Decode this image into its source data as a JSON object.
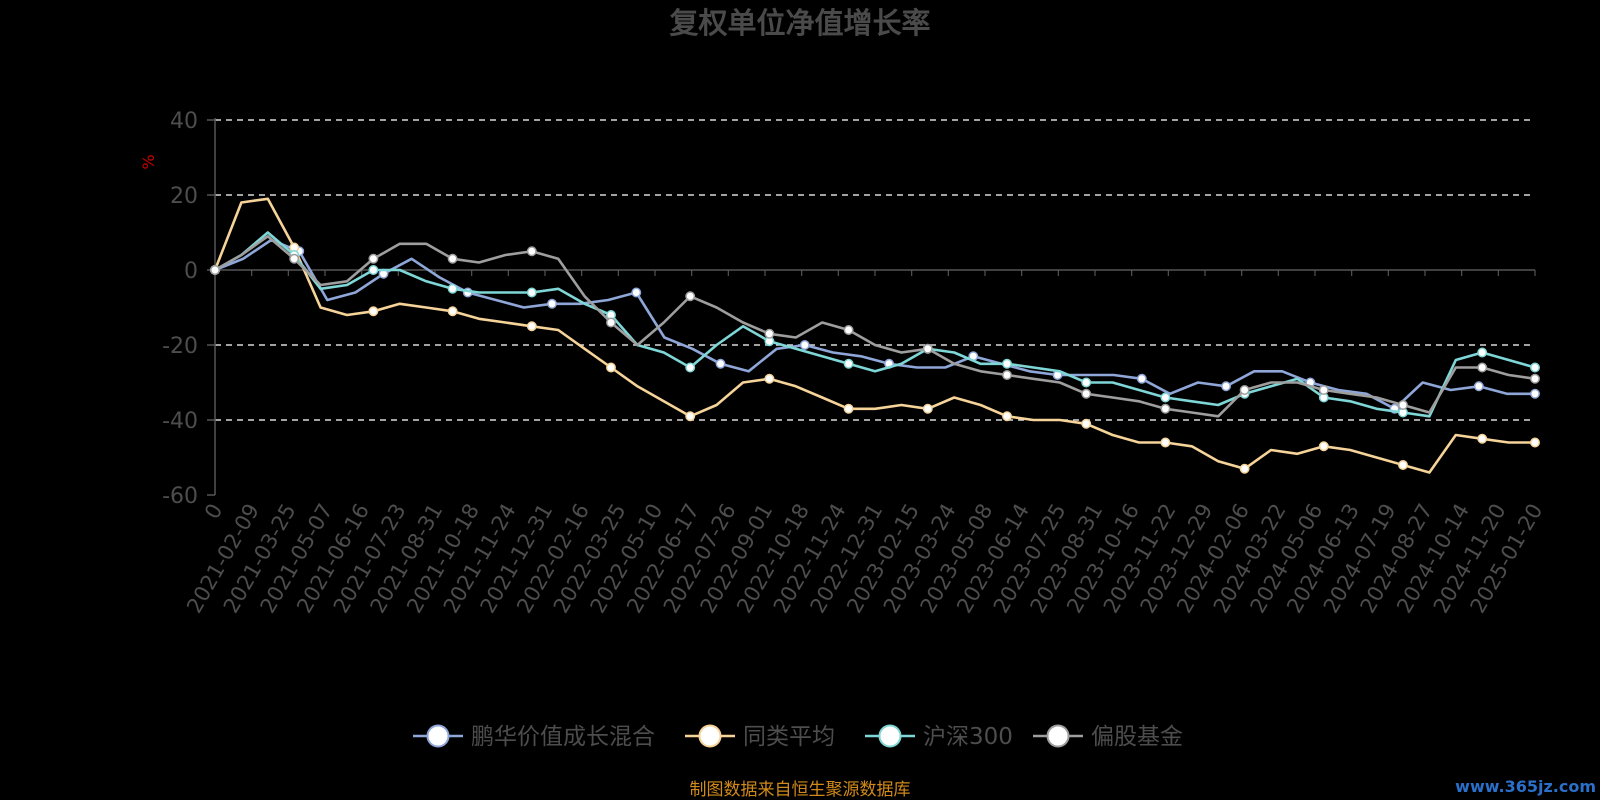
{
  "chart_data": {
    "type": "line",
    "title": "复权单位净值增长率",
    "ylabel": "%",
    "xlabel": "",
    "ylim": [
      -60,
      40
    ],
    "yticks": [
      40,
      20,
      0,
      -20,
      -40,
      -60
    ],
    "grid": true,
    "legend_position": "bottom",
    "x_tick_labels": [
      "0",
      "2021-02-09",
      "2021-03-25",
      "2021-05-07",
      "2021-06-16",
      "2021-07-23",
      "2021-08-31",
      "2021-10-18",
      "2021-11-24",
      "2021-12-31",
      "2022-02-16",
      "2022-03-25",
      "2022-05-10",
      "2022-06-17",
      "2022-07-26",
      "2022-09-01",
      "2022-10-18",
      "2022-11-24",
      "2022-12-31",
      "2023-02-15",
      "2023-03-24",
      "2023-05-08",
      "2023-06-14",
      "2023-07-25",
      "2023-08-31",
      "2023-10-16",
      "2023-11-22",
      "2023-12-29",
      "2024-02-06",
      "2024-03-22",
      "2024-05-06",
      "2024-06-13",
      "2024-07-19",
      "2024-08-27",
      "2024-10-14",
      "2024-11-20",
      "2025-01-20"
    ],
    "series": [
      {
        "name": "鹏华价值成长混合",
        "color": "#8ea6d8",
        "values": [
          0,
          3,
          8,
          5,
          -8,
          -6,
          -1,
          3,
          -2,
          -6,
          -8,
          -10,
          -9,
          -9,
          -8,
          -6,
          -18,
          -21,
          -25,
          -27,
          -21,
          -20,
          -22,
          -23,
          -25,
          -26,
          -26,
          -23,
          -25,
          -27,
          -28,
          -28,
          -28,
          -29,
          -33,
          -30,
          -31,
          -27,
          -27,
          -30,
          -32,
          -33,
          -37,
          -30,
          -32,
          -31,
          -33,
          -33
        ]
      },
      {
        "name": "同类平均",
        "color": "#f5d399",
        "values": [
          0,
          18,
          19,
          6,
          -10,
          -12,
          -11,
          -9,
          -10,
          -11,
          -13,
          -14,
          -15,
          -16,
          -21,
          -26,
          -31,
          -35,
          -39,
          -36,
          -30,
          -29,
          -31,
          -34,
          -37,
          -37,
          -36,
          -37,
          -34,
          -36,
          -39,
          -40,
          -40,
          -41,
          -44,
          -46,
          -46,
          -47,
          -51,
          -53,
          -48,
          -49,
          -47,
          -48,
          -50,
          -52,
          -54,
          -44,
          -45,
          -46,
          -46
        ]
      },
      {
        "name": "沪深300",
        "color": "#7fd6d6",
        "values": [
          0,
          4,
          10,
          4,
          -5,
          -4,
          0,
          0,
          -3,
          -5,
          -6,
          -6,
          -6,
          -5,
          -9,
          -12,
          -20,
          -22,
          -26,
          -20,
          -15,
          -19,
          -21,
          -23,
          -25,
          -27,
          -25,
          -21,
          -22,
          -25,
          -25,
          -26,
          -27,
          -30,
          -30,
          -32,
          -34,
          -35,
          -36,
          -33,
          -31,
          -29,
          -34,
          -35,
          -37,
          -38,
          -39,
          -24,
          -22,
          -24,
          -26
        ]
      },
      {
        "name": "偏股基金",
        "color": "#9e9e9e",
        "values": [
          0,
          4,
          9,
          3,
          -4,
          -3,
          3,
          7,
          7,
          3,
          2,
          4,
          5,
          3,
          -7,
          -14,
          -20,
          -14,
          -7,
          -10,
          -14,
          -17,
          -18,
          -14,
          -16,
          -20,
          -22,
          -21,
          -25,
          -27,
          -28,
          -29,
          -30,
          -33,
          -34,
          -35,
          -37,
          -38,
          -39,
          -32,
          -30,
          -30,
          -32,
          -33,
          -34,
          -36,
          -38,
          -26,
          -26,
          -28,
          -29
        ]
      }
    ],
    "source_note": "制图数据来自恒生聚源数据库"
  },
  "watermark": "www.365jz.com"
}
